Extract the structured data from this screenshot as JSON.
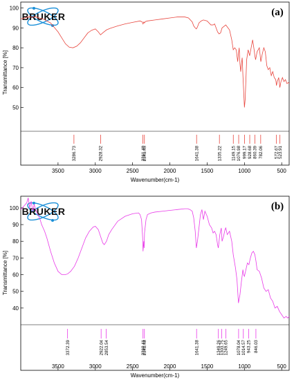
{
  "brand": "BRUKER",
  "colors": {
    "panel_a": "#e8443c",
    "panel_b": "#e838e8",
    "axis": "#000000",
    "logo": "#1a8fd8"
  },
  "chart_data": [
    {
      "type": "line",
      "panel_label": "(a)",
      "title": "",
      "xlabel": "Wavenumber(cm-1)",
      "ylabel": "Transmittance [%]",
      "x_reversed": true,
      "xlim": [
        4000,
        400
      ],
      "ylim": [
        38,
        103
      ],
      "xticks": [
        3500,
        3000,
        2500,
        2000,
        1500,
        1000,
        500
      ],
      "yticks": [
        50,
        60,
        70,
        80,
        90,
        100
      ],
      "peak_labels": [
        "3286.73",
        "2928.32",
        "2361.40",
        "2341.45",
        "1641.38",
        "1335.22",
        "1149.15",
        "1076.98",
        "999.17",
        "928.68",
        "860.39",
        "782.06",
        "572.67",
        "523.91"
      ],
      "peaks": [
        3286.73,
        2928.32,
        2361.4,
        2341.45,
        1641.38,
        1335.22,
        1149.15,
        1076.98,
        999.17,
        928.68,
        860.39,
        782.06,
        572.67,
        523.91
      ],
      "series": [
        {
          "x": [
            4000,
            3900,
            3800,
            3700,
            3600,
            3500,
            3450,
            3400,
            3350,
            3300,
            3250,
            3200,
            3150,
            3100,
            3050,
            3000,
            2960,
            2930,
            2900,
            2850,
            2800,
            2700,
            2600,
            2500,
            2400,
            2370,
            2360,
            2350,
            2340,
            2330,
            2300,
            2200,
            2100,
            2000,
            1900,
            1800,
            1750,
            1700,
            1680,
            1660,
            1645,
            1630,
            1610,
            1580,
            1550,
            1500,
            1450,
            1420,
            1400,
            1380,
            1360,
            1340,
            1320,
            1300,
            1250,
            1200,
            1170,
            1150,
            1130,
            1110,
            1090,
            1080,
            1070,
            1060,
            1050,
            1040,
            1030,
            1020,
            1010,
            1000,
            990,
            980,
            970,
            950,
            930,
            910,
            890,
            870,
            860,
            850,
            830,
            800,
            780,
            760,
            740,
            720,
            700,
            680,
            660,
            640,
            620,
            600,
            580,
            570,
            560,
            540,
            525,
            510,
            490,
            470,
            450,
            430,
            410,
            400
          ],
          "y": [
            94.5,
            95.5,
            95.5,
            94.5,
            92.5,
            88.0,
            85.0,
            82.0,
            80.3,
            80.0,
            80.8,
            82.5,
            85.0,
            87.5,
            88.8,
            89.5,
            88.0,
            86.5,
            87.5,
            89.0,
            89.8,
            91.0,
            92.0,
            92.8,
            93.5,
            93.0,
            92.0,
            93.0,
            92.5,
            93.2,
            93.5,
            94.0,
            94.5,
            95.0,
            95.5,
            95.5,
            95.0,
            93.0,
            91.0,
            90.0,
            89.5,
            90.5,
            92.5,
            93.5,
            94.0,
            93.5,
            91.5,
            91.5,
            92.0,
            90.0,
            88.0,
            87.0,
            87.5,
            90.0,
            91.5,
            89.0,
            84.0,
            79.0,
            80.0,
            79.0,
            73.0,
            77.0,
            80.0,
            72.0,
            68.0,
            72.0,
            75.0,
            66.0,
            58.0,
            50.0,
            54.0,
            64.0,
            74.0,
            79.0,
            76.0,
            80.0,
            84.0,
            79.0,
            76.0,
            74.0,
            78.0,
            80.0,
            73.0,
            77.0,
            80.0,
            78.0,
            71.0,
            69.0,
            70.0,
            66.0,
            68.0,
            65.0,
            64.0,
            61.0,
            63.0,
            65.0,
            60.0,
            63.0,
            65.0,
            63.0,
            64.0,
            62.0,
            62.5,
            62.0
          ]
        }
      ]
    },
    {
      "type": "line",
      "panel_label": "(b)",
      "title": "",
      "xlabel": "Wavenumber(cm-1)",
      "ylabel": "Transmittance [%]",
      "x_reversed": true,
      "xlim": [
        4000,
        400
      ],
      "ylim": [
        30,
        107
      ],
      "xticks": [
        3500,
        3000,
        2500,
        2000,
        1500,
        1000,
        500
      ],
      "yticks": [
        40,
        50,
        60,
        70,
        80,
        90,
        100
      ],
      "peak_labels": [
        "3372.39",
        "2922.04",
        "2853.54",
        "2360.41",
        "2341.48",
        "1641.38",
        "1349.26",
        "1303.75",
        "1249.65",
        "1078.04",
        "1014.57",
        "943.25",
        "846.03"
      ],
      "peaks": [
        3372.39,
        2922.04,
        2853.54,
        2360.41,
        2341.48,
        1641.38,
        1349.26,
        1303.75,
        1249.65,
        1078.04,
        1014.57,
        943.25,
        846.03
      ],
      "series": [
        {
          "x": [
            4000,
            3960,
            3920,
            3900,
            3880,
            3860,
            3840,
            3820,
            3800,
            3780,
            3760,
            3740,
            3720,
            3700,
            3680,
            3650,
            3600,
            3550,
            3500,
            3450,
            3400,
            3370,
            3330,
            3280,
            3230,
            3180,
            3130,
            3080,
            3030,
            3000,
            2960,
            2930,
            2900,
            2880,
            2850,
            2820,
            2780,
            2700,
            2600,
            2500,
            2420,
            2400,
            2380,
            2365,
            2360,
            2350,
            2345,
            2340,
            2320,
            2300,
            2250,
            2200,
            2100,
            2000,
            1900,
            1800,
            1760,
            1730,
            1700,
            1680,
            1660,
            1645,
            1630,
            1610,
            1590,
            1570,
            1550,
            1530,
            1500,
            1470,
            1440,
            1420,
            1400,
            1380,
            1360,
            1350,
            1330,
            1310,
            1300,
            1280,
            1260,
            1250,
            1230,
            1200,
            1170,
            1150,
            1120,
            1100,
            1090,
            1080,
            1060,
            1040,
            1020,
            1010,
            1000,
            980,
            960,
            940,
            920,
            900,
            880,
            860,
            845,
            830,
            800,
            770,
            740,
            710,
            680,
            650,
            620,
            590,
            560,
            530,
            500,
            470,
            440,
            420,
            400
          ],
          "y": [
            99,
            101,
            103,
            106,
            100,
            104,
            98,
            102,
            99,
            97,
            95,
            93,
            90,
            88,
            86,
            82,
            74,
            67,
            62,
            60,
            60,
            60.5,
            62,
            65,
            70,
            76,
            82,
            86,
            88.5,
            89,
            87,
            83,
            79,
            78,
            80,
            84,
            87,
            92,
            95,
            96.5,
            97,
            96,
            93,
            82,
            74,
            80,
            76,
            85,
            93,
            96,
            97,
            97.5,
            98,
            98.5,
            99,
            99.5,
            99.5,
            99,
            98,
            94,
            86,
            76,
            80,
            88,
            96,
            99,
            93,
            98,
            95,
            90,
            88,
            85,
            86,
            84,
            78,
            76,
            84,
            88,
            80,
            83,
            87,
            88,
            84,
            86,
            80,
            72,
            64,
            57,
            50,
            43,
            48,
            56,
            63,
            60,
            59,
            63,
            67,
            66,
            70,
            73,
            74,
            72,
            68,
            63,
            62,
            58,
            52,
            50,
            51,
            46,
            44,
            40,
            41,
            38,
            36,
            34,
            35,
            34,
            35
          ]
        }
      ]
    }
  ]
}
